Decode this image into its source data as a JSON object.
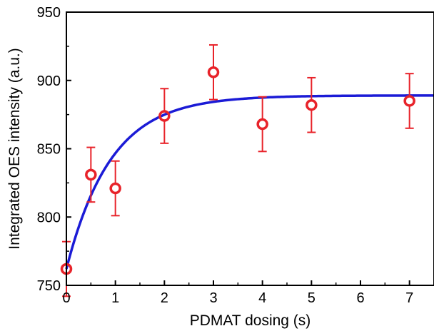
{
  "chart_data": {
    "type": "scatter",
    "xlabel": "PDMAT dosing (s)",
    "ylabel": "Integrated OES intensity (a.u.)",
    "xlim": [
      0,
      7.5
    ],
    "ylim": [
      750,
      950
    ],
    "x_ticks": [
      0,
      1,
      2,
      3,
      4,
      5,
      6,
      7
    ],
    "y_ticks": [
      750,
      800,
      850,
      900,
      950
    ],
    "grid": false,
    "legend": "none",
    "series": [
      {
        "type": "scatter",
        "color": "#e8232a",
        "marker": "open-circle",
        "x": [
          0,
          0.5,
          1,
          2,
          3,
          4,
          5,
          7
        ],
        "y": [
          762,
          831,
          821,
          874,
          906,
          868,
          882,
          885
        ],
        "error": [
          20,
          20,
          20,
          20,
          20,
          20,
          20,
          20
        ]
      },
      {
        "type": "line",
        "color": "#1b1bd6",
        "fit": "exponential",
        "y0": 762,
        "plateau": 889,
        "rate": 1.1,
        "x_range": [
          0,
          7.5
        ]
      }
    ]
  }
}
